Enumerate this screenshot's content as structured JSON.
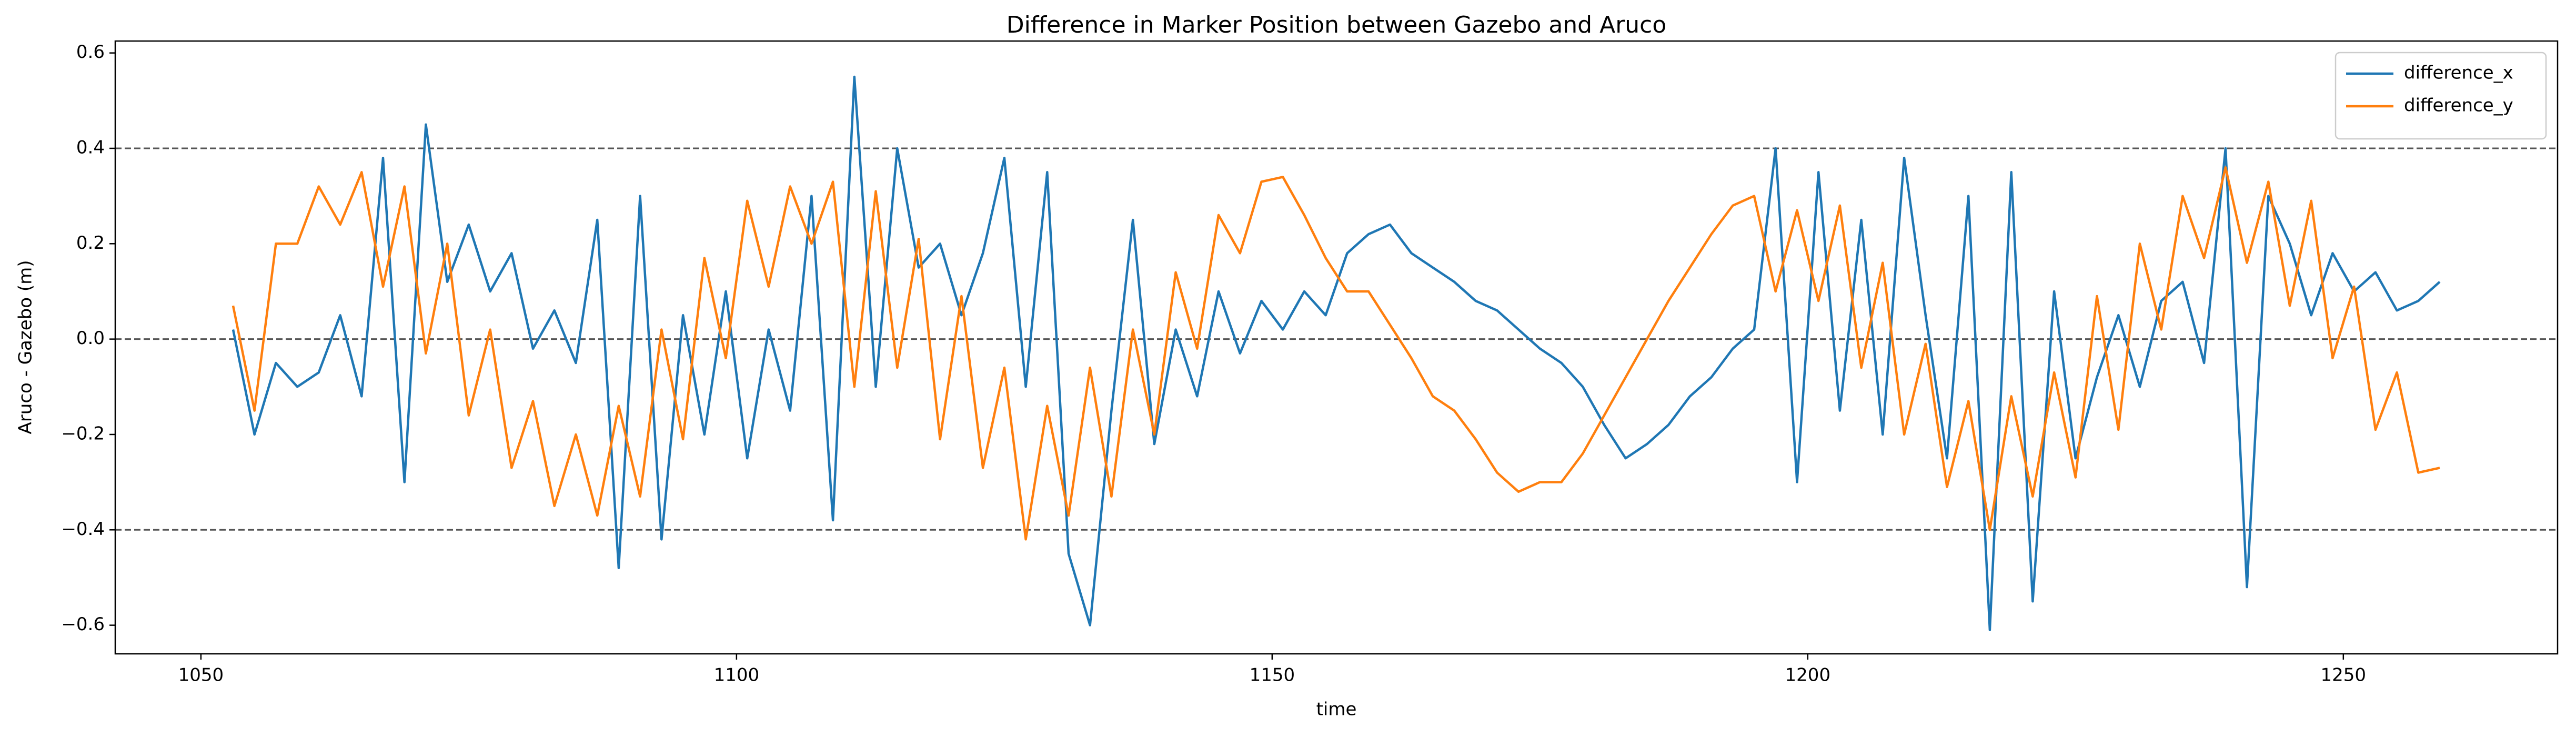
{
  "chart_data": {
    "type": "line",
    "title": "Difference in Marker Position between Gazebo and Aruco",
    "xlabel": "time",
    "ylabel": "Aruco - Gazebo (m)",
    "x": [
      1053,
      1055,
      1057,
      1059,
      1061,
      1063,
      1065,
      1067,
      1069,
      1071,
      1073,
      1075,
      1077,
      1079,
      1081,
      1083,
      1085,
      1087,
      1089,
      1091,
      1093,
      1095,
      1097,
      1099,
      1101,
      1103,
      1105,
      1107,
      1109,
      1111,
      1113,
      1115,
      1117,
      1119,
      1121,
      1123,
      1125,
      1127,
      1129,
      1131,
      1133,
      1135,
      1137,
      1139,
      1141,
      1143,
      1145,
      1147,
      1149,
      1151,
      1153,
      1155,
      1157,
      1159,
      1161,
      1163,
      1165,
      1167,
      1169,
      1171,
      1173,
      1175,
      1177,
      1179,
      1181,
      1183,
      1185,
      1187,
      1189,
      1191,
      1193,
      1195,
      1197,
      1199,
      1201,
      1203,
      1205,
      1207,
      1209,
      1211,
      1213,
      1215,
      1217,
      1219,
      1221,
      1223,
      1225,
      1227,
      1229,
      1231,
      1233,
      1235,
      1237,
      1239,
      1241,
      1243,
      1245,
      1247,
      1249,
      1251,
      1253,
      1255,
      1257,
      1259
    ],
    "series": [
      {
        "name": "difference_x",
        "color": "#1f77b4",
        "values": [
          0.02,
          -0.2,
          -0.05,
          -0.1,
          -0.07,
          0.05,
          -0.12,
          0.38,
          -0.3,
          0.45,
          0.12,
          0.24,
          0.1,
          0.18,
          -0.02,
          0.06,
          -0.05,
          0.25,
          -0.48,
          0.3,
          -0.42,
          0.05,
          -0.2,
          0.1,
          -0.25,
          0.02,
          -0.15,
          0.3,
          -0.38,
          0.55,
          -0.1,
          0.4,
          0.15,
          0.2,
          0.05,
          0.18,
          0.38,
          -0.1,
          0.35,
          -0.45,
          -0.6,
          -0.15,
          0.25,
          -0.22,
          0.02,
          -0.12,
          0.1,
          -0.03,
          0.08,
          0.02,
          0.1,
          0.05,
          0.18,
          0.22,
          0.24,
          0.18,
          0.15,
          0.12,
          0.08,
          0.06,
          0.02,
          -0.02,
          -0.05,
          -0.1,
          -0.18,
          -0.25,
          -0.22,
          -0.18,
          -0.12,
          -0.08,
          -0.02,
          0.02,
          0.4,
          -0.3,
          0.35,
          -0.15,
          0.25,
          -0.2,
          0.38,
          0.05,
          -0.25,
          0.3,
          -0.61,
          0.35,
          -0.55,
          0.1,
          -0.25,
          -0.08,
          0.05,
          -0.1,
          0.08,
          0.12,
          -0.05,
          0.4,
          -0.52,
          0.3,
          0.2,
          0.05,
          0.18,
          0.1,
          0.14,
          0.06,
          0.08,
          0.12
        ]
      },
      {
        "name": "difference_y",
        "color": "#ff7f0e",
        "values": [
          0.07,
          -0.15,
          0.2,
          0.2,
          0.32,
          0.24,
          0.35,
          0.11,
          0.32,
          -0.03,
          0.2,
          -0.16,
          0.02,
          -0.27,
          -0.13,
          -0.35,
          -0.2,
          -0.37,
          -0.14,
          -0.33,
          0.02,
          -0.21,
          0.17,
          -0.04,
          0.29,
          0.11,
          0.32,
          0.2,
          0.33,
          -0.1,
          0.31,
          -0.06,
          0.21,
          -0.21,
          0.09,
          -0.27,
          -0.06,
          -0.42,
          -0.14,
          -0.37,
          -0.06,
          -0.33,
          0.02,
          -0.2,
          0.14,
          -0.02,
          0.26,
          0.18,
          0.33,
          0.34,
          0.26,
          0.17,
          0.1,
          0.1,
          0.03,
          -0.04,
          -0.12,
          -0.15,
          -0.21,
          -0.28,
          -0.32,
          -0.3,
          -0.3,
          -0.24,
          -0.16,
          -0.08,
          0.0,
          0.08,
          0.15,
          0.22,
          0.28,
          0.3,
          0.1,
          0.27,
          0.08,
          0.28,
          -0.06,
          0.16,
          -0.2,
          -0.01,
          -0.31,
          -0.13,
          -0.4,
          -0.12,
          -0.33,
          -0.07,
          -0.29,
          0.09,
          -0.19,
          0.2,
          0.02,
          0.3,
          0.17,
          0.36,
          0.16,
          0.33,
          0.07,
          0.29,
          -0.04,
          0.11,
          -0.19,
          -0.07,
          -0.28,
          -0.27
        ]
      }
    ],
    "xlim": [
      1042,
      1270
    ],
    "ylim": [
      -0.66,
      0.625
    ],
    "xticks": [
      1050,
      1100,
      1150,
      1200,
      1250
    ],
    "yticks": [
      {
        "value": -0.6,
        "label": "−0.6"
      },
      {
        "value": -0.4,
        "label": "−0.4"
      },
      {
        "value": -0.2,
        "label": "−0.2"
      },
      {
        "value": 0,
        "label": "0.0"
      },
      0.2,
      0.4,
      0.6
    ],
    "hlines": [
      0.4,
      0,
      -0.4
    ],
    "hline_color": "#555555",
    "legend": "upper right"
  }
}
